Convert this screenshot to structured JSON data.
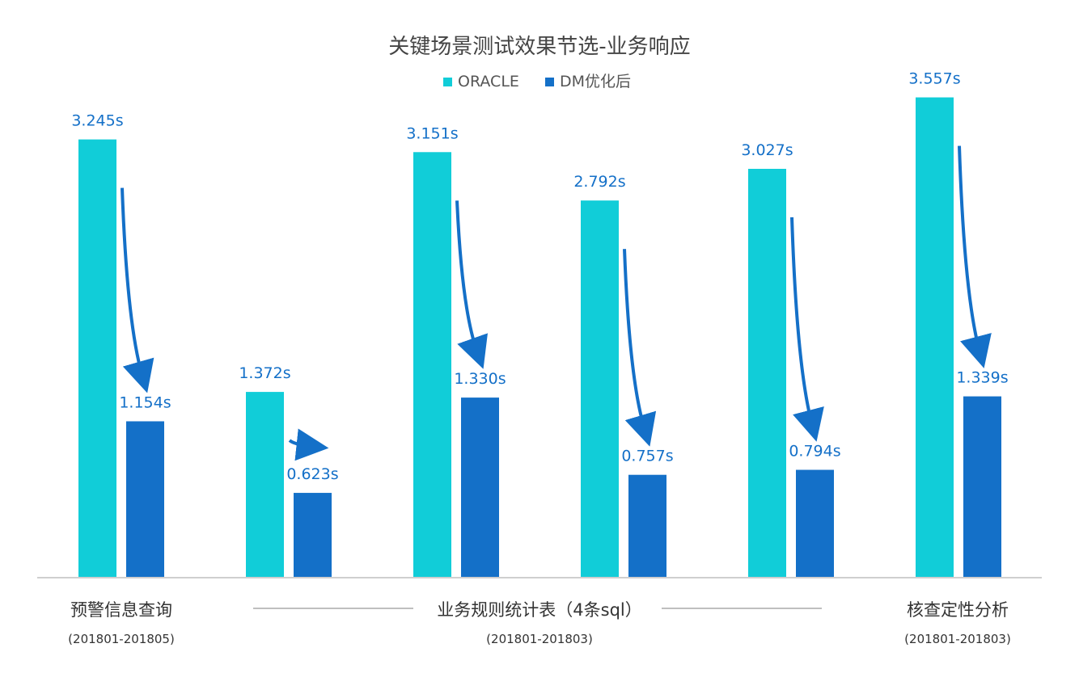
{
  "chart_data": {
    "type": "bar",
    "title": "关键场景测试效果节选-业务响应",
    "series": [
      {
        "name": "ORACLE",
        "color": "#11CDD8",
        "values": [
          3.245,
          1.372,
          3.151,
          2.792,
          3.027,
          3.557
        ]
      },
      {
        "name": "DM优化后",
        "color": "#1470C8",
        "values": [
          1.154,
          0.623,
          1.33,
          0.757,
          0.794,
          1.339
        ]
      }
    ],
    "value_labels": [
      [
        "3.245s",
        "1.372s",
        "3.151s",
        "2.792s",
        "3.027s",
        "3.557s"
      ],
      [
        "1.154s",
        "0.623s",
        "1.330s",
        "0.757s",
        "0.794s",
        "1.339s"
      ]
    ],
    "unit": "s",
    "ylim": [
      0,
      3.8
    ],
    "grid": false,
    "legend_position": "top-center",
    "label_color": "#1470C8",
    "arrow_color": "#1470C8",
    "groups": [
      {
        "label": "预警信息查询",
        "sublabel": "(201801-201805)"
      },
      {
        "label": "业务规则统计表（4条sql）",
        "sublabel": "(201801-201803)"
      },
      {
        "label": "核查定性分析",
        "sublabel": "(201801-201803)"
      }
    ]
  }
}
